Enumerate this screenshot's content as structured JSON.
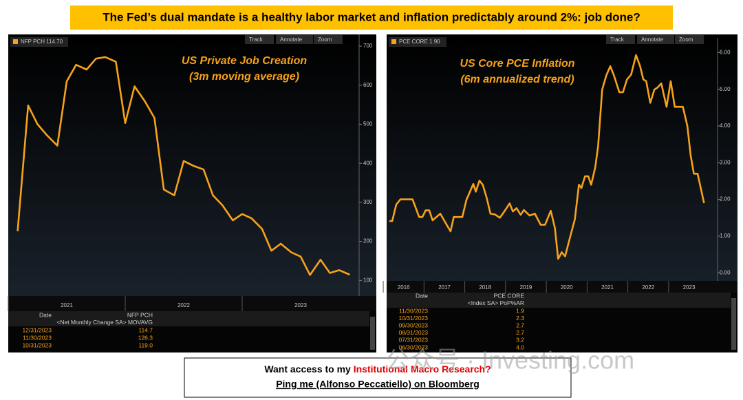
{
  "header": {
    "title": "The Fed’s dual mandate is a healthy labor market and inflation predictably around 2%: job done?"
  },
  "toolbar": [
    "Track",
    "Annotate",
    "Zoom"
  ],
  "chart_data": [
    {
      "type": "line",
      "annotation": [
        "US Private Job Creation",
        "(3m moving average)"
      ],
      "series": [
        {
          "name": "NFP PCH",
          "last_label": "114.70",
          "color": "#f7a21b",
          "x": [
            2021.08,
            2021.17,
            2021.25,
            2021.33,
            2021.42,
            2021.5,
            2021.58,
            2021.67,
            2021.75,
            2021.83,
            2021.92,
            2022.0,
            2022.08,
            2022.17,
            2022.25,
            2022.33,
            2022.42,
            2022.5,
            2022.58,
            2022.67,
            2022.75,
            2022.83,
            2022.92,
            2023.0,
            2023.08,
            2023.17,
            2023.25,
            2023.33,
            2023.42,
            2023.5,
            2023.58,
            2023.67,
            2023.75,
            2023.83,
            2023.92
          ],
          "values": [
            226,
            548,
            500,
            472,
            445,
            610,
            652,
            640,
            668,
            672,
            660,
            503,
            597,
            558,
            516,
            333,
            318,
            406,
            394,
            384,
            318,
            293,
            254,
            270,
            259,
            232,
            176,
            194,
            172,
            161,
            114,
            153,
            119.0,
            126.3,
            114.7
          ]
        }
      ],
      "xlim": [
        2021.0,
        2024.0
      ],
      "xticks": [
        {
          "value": 2021.5,
          "label": "2021"
        },
        {
          "value": 2022.5,
          "label": "2022"
        },
        {
          "value": 2023.5,
          "label": "2023"
        }
      ],
      "ylim": [
        60,
        730
      ],
      "yticks": [
        100,
        200,
        300,
        400,
        500,
        600,
        700
      ],
      "grid": false,
      "table": {
        "columns": [
          "Date",
          "NFP PCH"
        ],
        "subheader": "<Net Monthly Change SA> MOVAVG",
        "rows": [
          [
            "12/31/2023",
            "114.7"
          ],
          [
            "11/30/2023",
            "126.3"
          ],
          [
            "10/31/2023",
            "119.0"
          ]
        ]
      }
    },
    {
      "type": "line",
      "annotation": [
        "US Core PCE Inflation",
        "(6m annualized trend)"
      ],
      "series": [
        {
          "name": "PCE CORE",
          "last_label": "1.90",
          "color": "#f7a21b",
          "x": [
            2016.15,
            2016.22,
            2016.32,
            2016.42,
            2016.72,
            2016.88,
            2016.96,
            2017.04,
            2017.13,
            2017.21,
            2017.4,
            2017.57,
            2017.65,
            2017.73,
            2017.94,
            2018.04,
            2018.21,
            2018.27,
            2018.36,
            2018.44,
            2018.54,
            2018.63,
            2018.74,
            2018.86,
            2018.98,
            2019.1,
            2019.18,
            2019.27,
            2019.37,
            2019.45,
            2019.59,
            2019.72,
            2019.86,
            2019.97,
            2020.11,
            2020.21,
            2020.29,
            2020.38,
            2020.46,
            2020.58,
            2020.7,
            2020.8,
            2020.86,
            2020.95,
            2021.03,
            2021.1,
            2021.2,
            2021.27,
            2021.37,
            2021.47,
            2021.57,
            2021.66,
            2021.79,
            2021.88,
            2021.98,
            2022.08,
            2022.2,
            2022.3,
            2022.38,
            2022.45,
            2022.55,
            2022.65,
            2022.73,
            2022.82,
            2022.95,
            2023.05,
            2023.15,
            2023.35,
            2023.46,
            2023.54,
            2023.62,
            2023.71,
            2023.79,
            2023.87
          ],
          "values": [
            1.41,
            1.41,
            1.86,
            2.0,
            2.0,
            1.52,
            1.52,
            1.7,
            1.7,
            1.43,
            1.61,
            1.28,
            1.13,
            1.52,
            1.52,
            1.99,
            2.42,
            2.21,
            2.51,
            2.4,
            2.03,
            1.61,
            1.59,
            1.5,
            1.69,
            1.89,
            1.67,
            1.76,
            1.58,
            1.71,
            1.56,
            1.61,
            1.31,
            1.31,
            1.69,
            1.22,
            0.38,
            0.56,
            0.45,
            0.96,
            1.46,
            2.4,
            2.31,
            2.63,
            2.63,
            2.4,
            2.87,
            3.45,
            4.99,
            5.37,
            5.63,
            5.37,
            4.92,
            4.92,
            5.27,
            5.4,
            5.93,
            5.63,
            5.27,
            5.22,
            4.63,
            4.99,
            5.05,
            5.16,
            4.52,
            5.22,
            4.52,
            4.52,
            4.0,
            3.2,
            2.7,
            2.7,
            2.3,
            1.9
          ]
        }
      ],
      "xlim": [
        2016.1,
        2024.2
      ],
      "xticks": [
        {
          "value": 2016.5,
          "label": "2016"
        },
        {
          "value": 2017.5,
          "label": "2017"
        },
        {
          "value": 2018.5,
          "label": "2018"
        },
        {
          "value": 2019.5,
          "label": "2019"
        },
        {
          "value": 2020.5,
          "label": "2020"
        },
        {
          "value": 2021.5,
          "label": "2021"
        },
        {
          "value": 2022.5,
          "label": "2022"
        },
        {
          "value": 2023.5,
          "label": "2023"
        }
      ],
      "ylim": [
        -0.22,
        6.4
      ],
      "yticks": [
        {
          "value": 0,
          "label": "0.00"
        },
        {
          "value": 1,
          "label": "1.00"
        },
        {
          "value": 2,
          "label": "2.00"
        },
        {
          "value": 3,
          "label": "3.00"
        },
        {
          "value": 4,
          "label": "4.00"
        },
        {
          "value": 5,
          "label": "5.00"
        },
        {
          "value": 6,
          "label": "6.00"
        }
      ],
      "grid": false,
      "table": {
        "columns": [
          "Date",
          "PCE CORE"
        ],
        "subheader": "<Index SA> PoP%AR",
        "rows": [
          [
            "11/30/2023",
            "1.9"
          ],
          [
            "10/31/2023",
            "2.3"
          ],
          [
            "09/30/2023",
            "2.7"
          ],
          [
            "08/31/2023",
            "2.7"
          ],
          [
            "07/31/2023",
            "3.2"
          ],
          [
            "06/30/2023",
            "4.0"
          ]
        ]
      }
    }
  ],
  "footer": {
    "line1_prefix": "Want access to my ",
    "line1_highlight": "Institutional Macro Research?",
    "line2": "Ping me (Alfonso Peccatiello) on Bloomberg"
  },
  "watermark": "公众号 · Investing.com"
}
